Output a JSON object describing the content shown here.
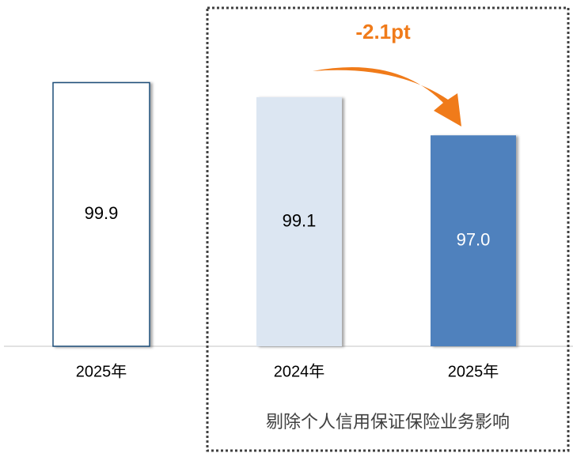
{
  "chart_data": {
    "type": "bar",
    "categories": [
      "2025年",
      "2024年",
      "2025年"
    ],
    "values": [
      99.9,
      99.1,
      97.0
    ],
    "value_labels": [
      "99.9",
      "99.1",
      "97.0"
    ],
    "colors": [
      "#ffffff",
      "#dce6f2",
      "#4f81bd"
    ],
    "edgecolors": [
      "#1f4e79",
      "none",
      "none"
    ],
    "label_colors": [
      "#000000",
      "#000000",
      "#ffffff"
    ],
    "ylim": [
      85.4,
      100.5
    ],
    "annotation": "-2.1pt",
    "annotation_color": "#f07b1a",
    "group_label": "剔除个人信用保证保险业务影响"
  }
}
